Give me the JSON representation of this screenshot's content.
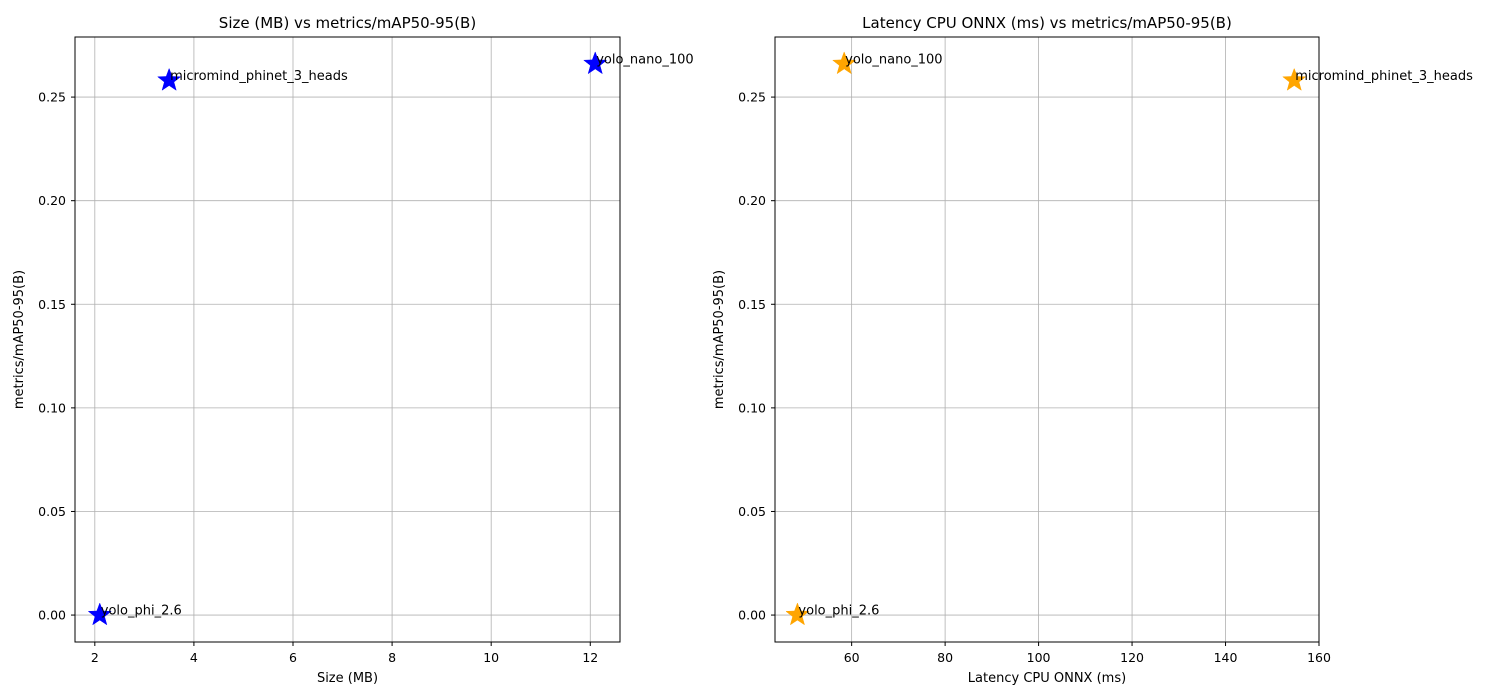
{
  "chart_data": [
    {
      "type": "scatter",
      "title": "Size (MB) vs metrics/mAP50-95(B)",
      "xlabel": "Size (MB)",
      "ylabel": "metrics/mAP50-95(B)",
      "xlim": [
        1.6,
        12.6
      ],
      "ylim": [
        -0.013,
        0.279
      ],
      "xticks": [
        2,
        4,
        6,
        8,
        10,
        12
      ],
      "xtick_labels": [
        "2",
        "4",
        "6",
        "8",
        "10",
        "12"
      ],
      "yticks": [
        0.0,
        0.05,
        0.1,
        0.15,
        0.2,
        0.25
      ],
      "ytick_labels": [
        "0.00",
        "0.05",
        "0.10",
        "0.15",
        "0.20",
        "0.25"
      ],
      "grid": true,
      "marker": "star",
      "color": "#0000ff",
      "points": [
        {
          "label": "micromind_phinet_3_heads",
          "x": 3.5,
          "y": 0.258
        },
        {
          "label": "yolo_nano_100",
          "x": 12.1,
          "y": 0.266
        },
        {
          "label": "yolo_phi_2.6",
          "x": 2.1,
          "y": 0.0
        }
      ]
    },
    {
      "type": "scatter",
      "title": "Latency CPU ONNX (ms) vs metrics/mAP50-95(B)",
      "xlabel": "Latency CPU ONNX (ms)",
      "ylabel": "metrics/mAP50-95(B)",
      "xlim": [
        43.6,
        160
      ],
      "ylim": [
        -0.013,
        0.279
      ],
      "xticks": [
        60,
        80,
        100,
        120,
        140,
        160
      ],
      "xtick_labels": [
        "60",
        "80",
        "100",
        "120",
        "140",
        "160"
      ],
      "yticks": [
        0.0,
        0.05,
        0.1,
        0.15,
        0.2,
        0.25
      ],
      "ytick_labels": [
        "0.00",
        "0.05",
        "0.10",
        "0.15",
        "0.20",
        "0.25"
      ],
      "grid": true,
      "marker": "star",
      "color": "#ffa500",
      "points": [
        {
          "label": "yolo_nano_100",
          "x": 58.4,
          "y": 0.266
        },
        {
          "label": "micromind_phinet_3_heads",
          "x": 154.7,
          "y": 0.258
        },
        {
          "label": "yolo_phi_2.6",
          "x": 48.4,
          "y": 0.0
        }
      ]
    }
  ]
}
